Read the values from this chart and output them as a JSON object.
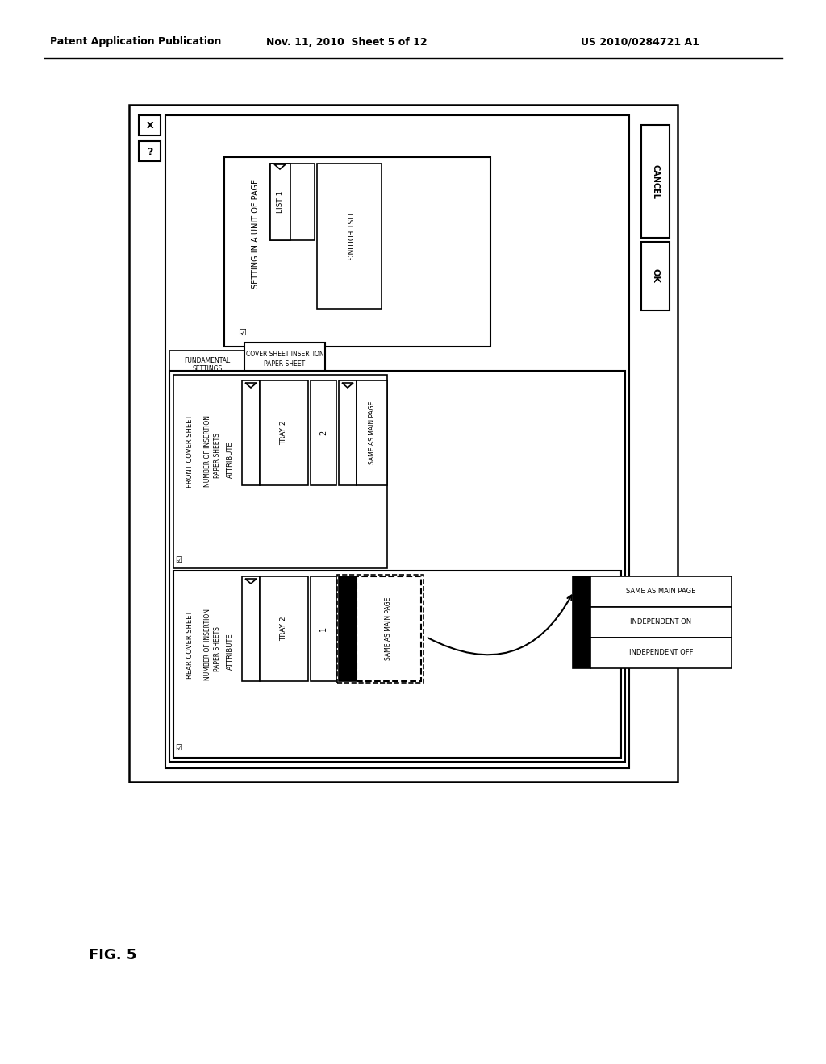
{
  "bg_color": "#ffffff",
  "header_left": "Patent Application Publication",
  "header_mid": "Nov. 11, 2010  Sheet 5 of 12",
  "header_right": "US 2010/0284721 A1",
  "fig_label": "FIG. 5"
}
